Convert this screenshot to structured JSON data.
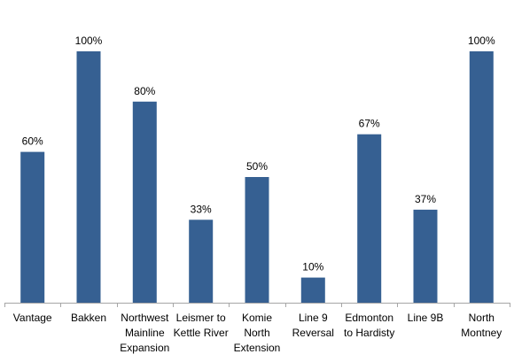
{
  "chart_data": {
    "type": "bar",
    "categories": [
      [
        "Vantage"
      ],
      [
        "Bakken"
      ],
      [
        "Northwest",
        "Mainline",
        "Expansion"
      ],
      [
        "Leismer to",
        "Kettle River"
      ],
      [
        "Komie",
        "North",
        "Extension"
      ],
      [
        "Line 9",
        "Reversal"
      ],
      [
        "Edmonton",
        "to Hardisty"
      ],
      [
        "Line 9B"
      ],
      [
        "North",
        "Montney"
      ]
    ],
    "values": [
      60,
      100,
      80,
      33,
      50,
      10,
      67,
      37,
      100
    ],
    "data_labels": [
      "60%",
      "100%",
      "80%",
      "33%",
      "50%",
      "10%",
      "67%",
      "37%",
      "100%"
    ],
    "ylim": [
      0,
      100
    ],
    "bar_color": "#366092",
    "axis_color": "#a6a6a6",
    "grid": false,
    "legend": "none"
  }
}
